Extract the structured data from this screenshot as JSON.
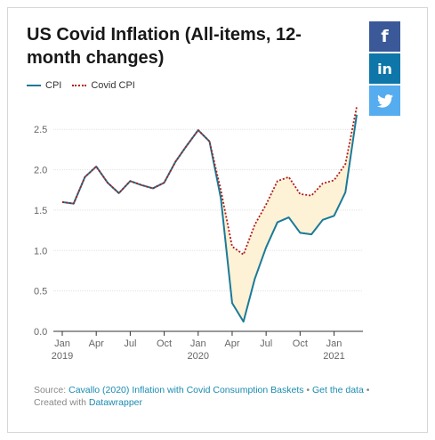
{
  "title": "US Covid Inflation (All-items, 12-month changes)",
  "legend": {
    "cpi": "CPI",
    "covid_cpi": "Covid CPI"
  },
  "social": {
    "facebook": "f",
    "linkedin": "in",
    "twitter": "🐦"
  },
  "source": {
    "prefix": "Source: ",
    "source_link": "Cavallo (2020) Inflation with Covid Consumption Baskets",
    "sep": " • ",
    "data_link": "Get the data",
    "sep2": " •",
    "created_prefix": "Created with ",
    "datawrapper_link": "Datawrapper"
  },
  "colors": {
    "cpi": "#1a7a98",
    "covid_cpi": "#b11a1a",
    "fill": "#fdf1d6"
  },
  "chart_data": {
    "type": "line",
    "title": "US Covid Inflation (All-items, 12-month changes)",
    "ylim": [
      0,
      2.8
    ],
    "y_ticks": [
      0.0,
      0.5,
      1.0,
      1.5,
      2.0,
      2.5
    ],
    "y_tick_labels": [
      "0.0",
      "0.5",
      "1.0",
      "1.5",
      "2.0",
      "2.5"
    ],
    "x_ticks": [
      {
        "month": 0,
        "label": "Jan",
        "year": "2019"
      },
      {
        "month": 3,
        "label": "Apr",
        "year": ""
      },
      {
        "month": 6,
        "label": "Jul",
        "year": ""
      },
      {
        "month": 9,
        "label": "Oct",
        "year": ""
      },
      {
        "month": 12,
        "label": "Jan",
        "year": "2020"
      },
      {
        "month": 15,
        "label": "Apr",
        "year": ""
      },
      {
        "month": 18,
        "label": "Jul",
        "year": ""
      },
      {
        "month": 21,
        "label": "Oct",
        "year": ""
      },
      {
        "month": 24,
        "label": "Jan",
        "year": "2021"
      }
    ],
    "x": [
      "2019-01",
      "2019-02",
      "2019-03",
      "2019-04",
      "2019-05",
      "2019-06",
      "2019-07",
      "2019-08",
      "2019-09",
      "2019-10",
      "2019-11",
      "2019-12",
      "2020-01",
      "2020-02",
      "2020-03",
      "2020-04",
      "2020-05",
      "2020-06",
      "2020-07",
      "2020-08",
      "2020-09",
      "2020-10",
      "2020-11",
      "2020-12",
      "2021-01",
      "2021-02",
      "2021-03"
    ],
    "series": [
      {
        "name": "CPI",
        "values": [
          1.6,
          1.58,
          1.91,
          2.04,
          1.84,
          1.71,
          1.86,
          1.81,
          1.77,
          1.84,
          2.1,
          2.3,
          2.49,
          2.35,
          1.65,
          0.35,
          0.12,
          0.65,
          1.04,
          1.35,
          1.41,
          1.22,
          1.2,
          1.38,
          1.43,
          1.72,
          2.68
        ]
      },
      {
        "name": "Covid CPI",
        "values": [
          1.6,
          1.58,
          1.91,
          2.04,
          1.84,
          1.71,
          1.86,
          1.81,
          1.77,
          1.84,
          2.1,
          2.3,
          2.49,
          2.35,
          1.75,
          1.05,
          0.95,
          1.32,
          1.57,
          1.86,
          1.91,
          1.7,
          1.68,
          1.83,
          1.87,
          2.07,
          2.78
        ]
      }
    ]
  }
}
